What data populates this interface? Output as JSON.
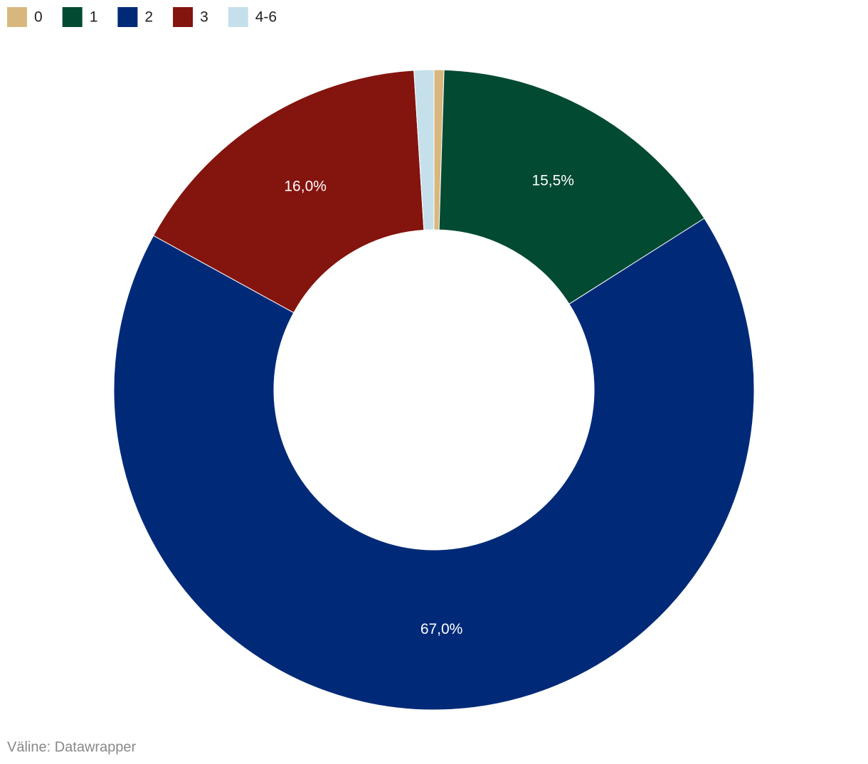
{
  "chart_data": {
    "type": "donut",
    "categories": [
      "0",
      "1",
      "2",
      "3",
      "4-6"
    ],
    "values": [
      0.5,
      15.5,
      67.0,
      16.0,
      1.0
    ],
    "value_labels": [
      null,
      "15,5%",
      "67,0%",
      "16,0%",
      null
    ],
    "colors": [
      "#d8b77e",
      "#034a33",
      "#002a77",
      "#83140e",
      "#c5e0eb"
    ],
    "legend": "top-left",
    "source": "Väline: Datawrapper"
  }
}
